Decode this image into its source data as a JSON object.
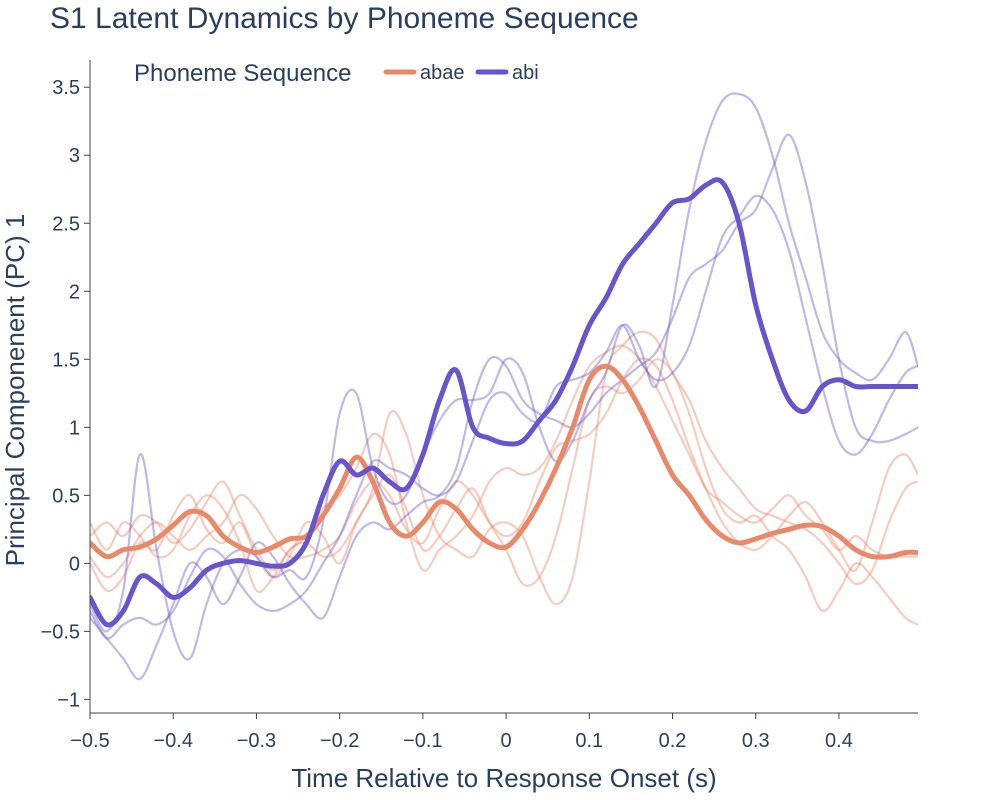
{
  "chart_data": {
    "type": "line",
    "title": "S1 Latent Dynamics by Phoneme Sequence",
    "xlabel": "Time Relative to Response Onset (s)",
    "ylabel": "Principal Componenent (PC) 1",
    "xlim": [
      -0.5,
      0.495
    ],
    "ylim": [
      -1.1,
      3.7
    ],
    "x_ticks": [
      -0.5,
      -0.4,
      -0.3,
      -0.2,
      -0.1,
      0,
      0.1,
      0.2,
      0.3,
      0.4
    ],
    "x_tick_labels": [
      "−0.5",
      "−0.4",
      "−0.3",
      "−0.2",
      "−0.1",
      "0",
      "0.1",
      "0.2",
      "0.3",
      "0.4"
    ],
    "y_ticks": [
      -1,
      -0.5,
      0,
      0.5,
      1,
      1.5,
      2,
      2.5,
      3,
      3.5
    ],
    "y_tick_labels": [
      "−1",
      "−0.5",
      "0",
      "0.5",
      "1",
      "1.5",
      "2",
      "2.5",
      "3",
      "3.5"
    ],
    "grid": false,
    "legend": {
      "title": "Phoneme Sequence",
      "placement": "top-left"
    },
    "x": [
      -0.5,
      -0.48,
      -0.46,
      -0.44,
      -0.42,
      -0.4,
      -0.38,
      -0.36,
      -0.34,
      -0.32,
      -0.3,
      -0.28,
      -0.26,
      -0.24,
      -0.22,
      -0.2,
      -0.18,
      -0.16,
      -0.14,
      -0.12,
      -0.1,
      -0.08,
      -0.06,
      -0.04,
      -0.02,
      0,
      0.02,
      0.04,
      0.06,
      0.08,
      0.1,
      0.12,
      0.14,
      0.16,
      0.18,
      0.2,
      0.22,
      0.24,
      0.26,
      0.28,
      0.3,
      0.32,
      0.34,
      0.36,
      0.38,
      0.4,
      0.42,
      0.44,
      0.46,
      0.48,
      0.495
    ],
    "series": [
      {
        "name": "abae",
        "color": "#e8896a",
        "role": "mean",
        "values": [
          0.15,
          0.05,
          0.1,
          0.12,
          0.18,
          0.28,
          0.38,
          0.35,
          0.2,
          0.12,
          0.08,
          0.12,
          0.18,
          0.2,
          0.35,
          0.55,
          0.78,
          0.6,
          0.3,
          0.2,
          0.3,
          0.45,
          0.4,
          0.25,
          0.15,
          0.12,
          0.25,
          0.45,
          0.7,
          1.0,
          1.35,
          1.45,
          1.35,
          1.15,
          0.9,
          0.65,
          0.5,
          0.32,
          0.2,
          0.15,
          0.18,
          0.22,
          0.25,
          0.28,
          0.27,
          0.2,
          0.1,
          0.05,
          0.05,
          0.08,
          0.08
        ]
      },
      {
        "name": "abi",
        "color": "#6655cc",
        "role": "mean",
        "values": [
          -0.25,
          -0.45,
          -0.35,
          -0.1,
          -0.15,
          -0.25,
          -0.18,
          -0.05,
          0.0,
          0.02,
          0.0,
          -0.02,
          0.0,
          0.15,
          0.5,
          0.75,
          0.65,
          0.7,
          0.6,
          0.55,
          0.8,
          1.2,
          1.42,
          1.0,
          0.92,
          0.88,
          0.9,
          1.05,
          1.2,
          1.45,
          1.75,
          1.95,
          2.2,
          2.35,
          2.5,
          2.65,
          2.68,
          2.78,
          2.8,
          2.5,
          1.9,
          1.5,
          1.2,
          1.12,
          1.3,
          1.35,
          1.3,
          1.3,
          1.3,
          1.3,
          1.3
        ]
      },
      {
        "color": "#e8896a",
        "role": "trial",
        "values": [
          0.2,
          0.3,
          0.2,
          0.35,
          0.3,
          0.15,
          0.25,
          0.45,
          0.6,
          0.35,
          0.1,
          -0.05,
          0.1,
          0.2,
          0.4,
          0.5,
          0.7,
          0.95,
          0.8,
          0.3,
          -0.05,
          0.1,
          0.2,
          0.35,
          0.6,
          0.7,
          0.65,
          0.7,
          0.9,
          1.2,
          1.45,
          1.55,
          1.6,
          1.5,
          1.3,
          1.05,
          0.8,
          0.55,
          0.45,
          0.35,
          0.3,
          0.4,
          0.5,
          0.35,
          0.25,
          0.1,
          0.2,
          0.1,
          0.05,
          0.05,
          0.05
        ]
      },
      {
        "color": "#e8896a",
        "role": "trial",
        "values": [
          0.0,
          -0.2,
          -0.1,
          0.15,
          0.1,
          0.35,
          0.5,
          0.25,
          0.15,
          0.3,
          0.05,
          -0.1,
          0.05,
          0.3,
          0.2,
          0.0,
          0.3,
          0.55,
          1.1,
          0.95,
          0.5,
          0.2,
          0.1,
          0.05,
          0.25,
          0.3,
          0.2,
          -0.1,
          -0.3,
          -0.1,
          0.6,
          1.4,
          1.6,
          1.7,
          1.65,
          1.4,
          1.2,
          0.9,
          0.7,
          0.55,
          0.4,
          0.35,
          0.3,
          0.25,
          0.15,
          0.0,
          -0.15,
          -0.05,
          0.3,
          0.55,
          0.6
        ]
      },
      {
        "color": "#e8896a",
        "role": "trial",
        "values": [
          0.3,
          0.1,
          0.3,
          0.2,
          0.05,
          0.1,
          0.35,
          0.5,
          0.4,
          0.15,
          -0.2,
          -0.1,
          0.1,
          0.15,
          0.05,
          0.1,
          0.3,
          0.5,
          0.65,
          0.4,
          0.1,
          0.2,
          0.4,
          0.55,
          0.3,
          0.1,
          -0.15,
          -0.1,
          0.2,
          0.7,
          1.2,
          1.3,
          1.25,
          1.35,
          1.5,
          1.4,
          1.1,
          0.7,
          0.4,
          0.3,
          0.35,
          0.2,
          0.1,
          -0.1,
          -0.35,
          -0.2,
          0.0,
          -0.1,
          -0.25,
          -0.4,
          -0.45
        ]
      },
      {
        "color": "#e8896a",
        "role": "trial",
        "values": [
          0.05,
          -0.1,
          0.0,
          0.2,
          0.3,
          0.2,
          0.1,
          0.2,
          0.3,
          0.5,
          0.4,
          0.2,
          0.05,
          0.05,
          0.1,
          0.2,
          0.45,
          0.6,
          0.5,
          0.25,
          0.15,
          0.4,
          0.6,
          0.5,
          0.3,
          0.2,
          0.3,
          0.6,
          0.85,
          0.9,
          0.95,
          1.1,
          1.35,
          1.5,
          1.45,
          1.2,
          0.85,
          0.55,
          0.3,
          0.15,
          0.1,
          0.2,
          0.35,
          0.45,
          0.3,
          0.1,
          -0.05,
          0.3,
          0.7,
          0.8,
          0.65
        ]
      },
      {
        "color": "#6655cc",
        "role": "trial",
        "values": [
          -0.3,
          -0.5,
          -0.2,
          0.8,
          0.1,
          -0.5,
          -0.7,
          -0.3,
          0.0,
          0.1,
          0.05,
          -0.1,
          -0.05,
          -0.1,
          0.3,
          1.1,
          1.25,
          0.7,
          0.45,
          0.5,
          0.8,
          1.05,
          1.2,
          1.2,
          1.25,
          1.5,
          1.4,
          1.0,
          0.75,
          0.9,
          1.2,
          1.4,
          1.75,
          1.6,
          1.3,
          1.9,
          2.6,
          3.1,
          3.4,
          3.45,
          3.35,
          3.0,
          2.5,
          2.1,
          1.7,
          1.5,
          1.4,
          1.35,
          1.5,
          1.7,
          1.45
        ]
      },
      {
        "color": "#6655cc",
        "role": "trial",
        "values": [
          -0.4,
          -0.55,
          -0.7,
          -0.85,
          -0.6,
          -0.3,
          0.0,
          -0.1,
          -0.3,
          -0.1,
          0.15,
          0.05,
          -0.15,
          -0.3,
          -0.4,
          -0.1,
          0.2,
          0.3,
          0.25,
          0.35,
          0.45,
          0.5,
          0.7,
          1.2,
          1.5,
          1.45,
          1.2,
          1.1,
          1.05,
          1.0,
          1.1,
          1.25,
          1.35,
          1.45,
          1.55,
          1.8,
          2.1,
          2.2,
          2.3,
          2.5,
          2.6,
          2.9,
          3.15,
          2.8,
          2.2,
          1.5,
          1.0,
          0.9,
          0.9,
          0.95,
          1.0
        ]
      },
      {
        "color": "#6655cc",
        "role": "trial",
        "values": [
          -0.35,
          -0.55,
          -0.45,
          -0.4,
          -0.45,
          -0.35,
          -0.1,
          0.1,
          0.05,
          -0.15,
          -0.3,
          -0.35,
          -0.3,
          -0.2,
          0.0,
          0.2,
          0.5,
          0.75,
          0.7,
          0.65,
          0.55,
          0.5,
          0.6,
          0.9,
          1.2,
          1.25,
          1.1,
          1.05,
          1.3,
          1.35,
          1.4,
          1.55,
          1.75,
          1.5,
          1.35,
          1.4,
          1.6,
          2.0,
          2.4,
          2.55,
          2.7,
          2.6,
          2.3,
          1.8,
          1.3,
          0.9,
          0.8,
          0.95,
          1.2,
          1.4,
          1.45
        ]
      }
    ]
  }
}
